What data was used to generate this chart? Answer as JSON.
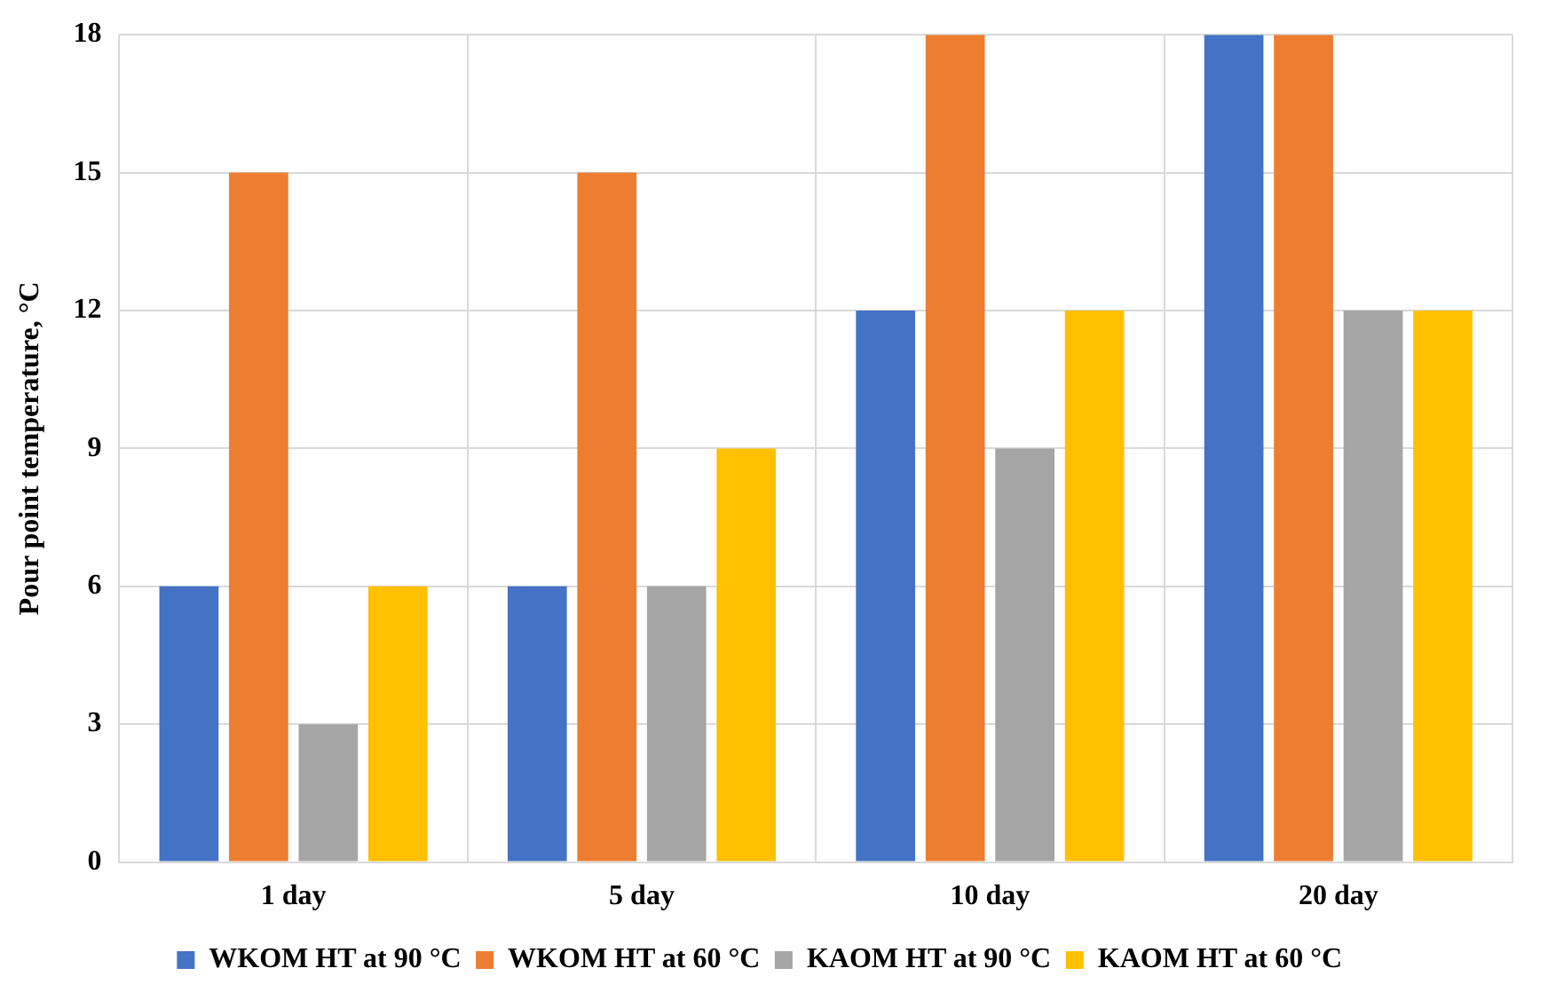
{
  "chart_data": {
    "type": "bar",
    "ylabel": "Pour point temperature, °C",
    "categories": [
      "1 day",
      "5 day",
      "10 day",
      "20 day"
    ],
    "series": [
      {
        "name": "WKOM HT at 90 °C",
        "color": "#4472c4",
        "values": [
          6,
          6,
          12,
          18
        ]
      },
      {
        "name": "WKOM HT at 60 °C",
        "color": "#ed7d31",
        "values": [
          15,
          15,
          18,
          18
        ]
      },
      {
        "name": "KAOM HT at 90 °C",
        "color": "#a5a5a5",
        "values": [
          3,
          6,
          9,
          12
        ]
      },
      {
        "name": "KAOM HT at 60 °C",
        "color": "#ffc000",
        "values": [
          6,
          9,
          12,
          12
        ]
      }
    ],
    "ylim": [
      0,
      18
    ],
    "yticks": [
      0,
      3,
      6,
      9,
      12,
      15,
      18
    ],
    "grid": true,
    "legend": "bottom"
  }
}
